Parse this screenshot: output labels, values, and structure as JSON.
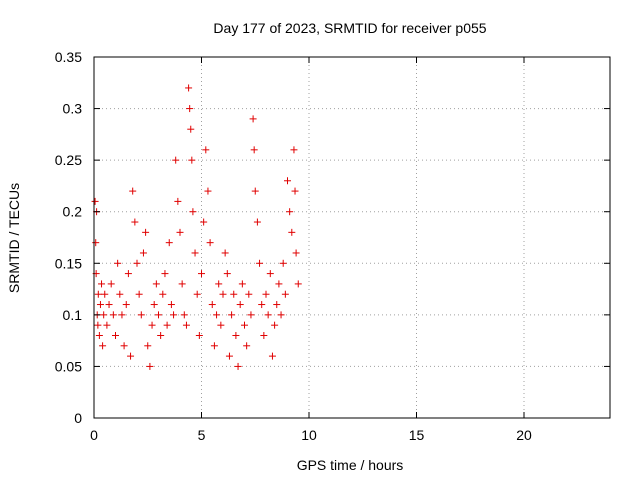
{
  "chart_data": {
    "type": "scatter",
    "title": "Day 177 of 2023, SRMTID for receiver p055",
    "xlabel": "GPS time / hours",
    "ylabel": "SRMTID / TECUs",
    "xlim": [
      0,
      24
    ],
    "ylim": [
      0,
      0.35
    ],
    "xticks": [
      0,
      5,
      10,
      15,
      20
    ],
    "xtick_labels": [
      "0",
      "5",
      "10",
      "15",
      "20"
    ],
    "yticks": [
      0,
      0.05,
      0.1,
      0.15,
      0.2,
      0.25,
      0.3,
      0.35
    ],
    "ytick_labels": [
      "0",
      "0.05",
      "0.1",
      "0.15",
      "0.2",
      "0.25",
      "0.3",
      "0.35"
    ],
    "grid": true,
    "marker": "+",
    "marker_color": "#e00000",
    "series": [
      {
        "name": "p055",
        "points": [
          [
            0.05,
            0.21
          ],
          [
            0.08,
            0.17
          ],
          [
            0.1,
            0.14
          ],
          [
            0.12,
            0.2
          ],
          [
            0.15,
            0.1
          ],
          [
            0.18,
            0.09
          ],
          [
            0.2,
            0.12
          ],
          [
            0.25,
            0.08
          ],
          [
            0.3,
            0.11
          ],
          [
            0.35,
            0.13
          ],
          [
            0.4,
            0.07
          ],
          [
            0.45,
            0.1
          ],
          [
            0.5,
            0.12
          ],
          [
            0.6,
            0.09
          ],
          [
            0.7,
            0.11
          ],
          [
            0.8,
            0.13
          ],
          [
            0.9,
            0.1
          ],
          [
            1.0,
            0.08
          ],
          [
            1.1,
            0.15
          ],
          [
            1.2,
            0.12
          ],
          [
            1.3,
            0.1
          ],
          [
            1.4,
            0.07
          ],
          [
            1.5,
            0.11
          ],
          [
            1.6,
            0.14
          ],
          [
            1.7,
            0.06
          ],
          [
            1.8,
            0.22
          ],
          [
            1.9,
            0.19
          ],
          [
            2.0,
            0.15
          ],
          [
            2.1,
            0.12
          ],
          [
            2.2,
            0.1
          ],
          [
            2.3,
            0.16
          ],
          [
            2.4,
            0.18
          ],
          [
            2.5,
            0.07
          ],
          [
            2.6,
            0.05
          ],
          [
            2.7,
            0.09
          ],
          [
            2.8,
            0.11
          ],
          [
            2.9,
            0.13
          ],
          [
            3.0,
            0.1
          ],
          [
            3.1,
            0.08
          ],
          [
            3.2,
            0.12
          ],
          [
            3.3,
            0.14
          ],
          [
            3.4,
            0.09
          ],
          [
            3.5,
            0.17
          ],
          [
            3.6,
            0.11
          ],
          [
            3.7,
            0.1
          ],
          [
            3.8,
            0.25
          ],
          [
            3.9,
            0.21
          ],
          [
            4.0,
            0.18
          ],
          [
            4.1,
            0.13
          ],
          [
            4.2,
            0.1
          ],
          [
            4.3,
            0.09
          ],
          [
            4.4,
            0.32
          ],
          [
            4.45,
            0.3
          ],
          [
            4.5,
            0.28
          ],
          [
            4.55,
            0.25
          ],
          [
            4.6,
            0.2
          ],
          [
            4.7,
            0.16
          ],
          [
            4.8,
            0.12
          ],
          [
            4.9,
            0.08
          ],
          [
            5.0,
            0.14
          ],
          [
            5.1,
            0.19
          ],
          [
            5.2,
            0.26
          ],
          [
            5.3,
            0.22
          ],
          [
            5.4,
            0.17
          ],
          [
            5.5,
            0.11
          ],
          [
            5.6,
            0.07
          ],
          [
            5.7,
            0.1
          ],
          [
            5.8,
            0.13
          ],
          [
            5.9,
            0.09
          ],
          [
            6.0,
            0.12
          ],
          [
            6.1,
            0.16
          ],
          [
            6.2,
            0.14
          ],
          [
            6.3,
            0.06
          ],
          [
            6.4,
            0.1
          ],
          [
            6.5,
            0.12
          ],
          [
            6.6,
            0.08
          ],
          [
            6.7,
            0.05
          ],
          [
            6.8,
            0.11
          ],
          [
            6.9,
            0.13
          ],
          [
            7.0,
            0.09
          ],
          [
            7.1,
            0.07
          ],
          [
            7.2,
            0.12
          ],
          [
            7.3,
            0.1
          ],
          [
            7.4,
            0.29
          ],
          [
            7.45,
            0.26
          ],
          [
            7.5,
            0.22
          ],
          [
            7.6,
            0.19
          ],
          [
            7.7,
            0.15
          ],
          [
            7.8,
            0.11
          ],
          [
            7.9,
            0.08
          ],
          [
            8.0,
            0.12
          ],
          [
            8.1,
            0.1
          ],
          [
            8.2,
            0.14
          ],
          [
            8.3,
            0.06
          ],
          [
            8.4,
            0.09
          ],
          [
            8.5,
            0.11
          ],
          [
            8.6,
            0.13
          ],
          [
            8.7,
            0.1
          ],
          [
            8.8,
            0.15
          ],
          [
            8.9,
            0.12
          ],
          [
            9.0,
            0.23
          ],
          [
            9.1,
            0.2
          ],
          [
            9.2,
            0.18
          ],
          [
            9.3,
            0.26
          ],
          [
            9.35,
            0.22
          ],
          [
            9.4,
            0.16
          ],
          [
            9.5,
            0.13
          ]
        ]
      }
    ]
  }
}
